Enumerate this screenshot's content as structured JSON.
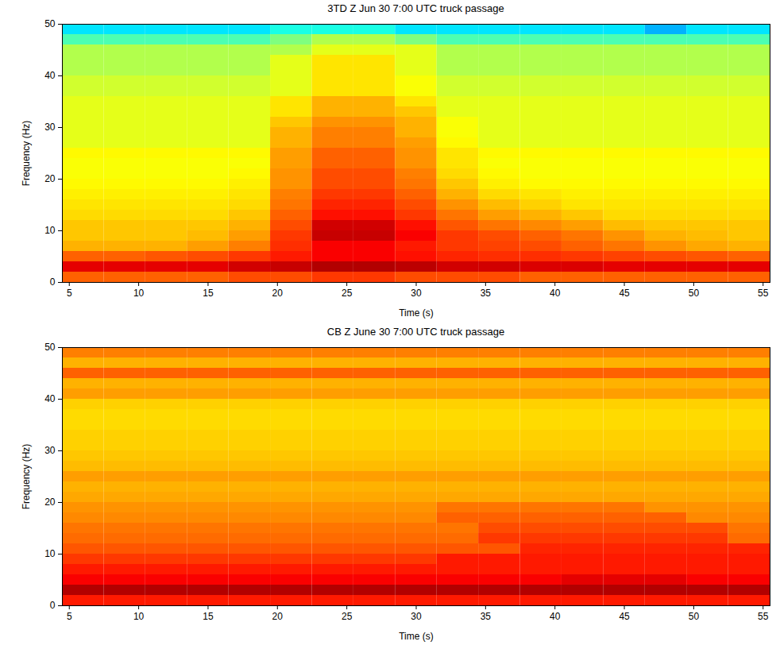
{
  "chart_data": [
    {
      "type": "heatmap",
      "title": "3TD Z Jun 30 7:00 UTC truck passage",
      "x_label": "Time (s)",
      "y_label": "Frequency (Hz)",
      "xlim": [
        4.5,
        55.5
      ],
      "ylim": [
        0,
        50
      ],
      "xticks": [
        5,
        10,
        15,
        20,
        25,
        30,
        35,
        40,
        45,
        50,
        55
      ],
      "yticks": [
        0,
        10,
        20,
        30,
        40,
        50
      ],
      "zlim": [
        0,
        10
      ],
      "x_edges": [
        4.5,
        7.5,
        10.5,
        13.5,
        16.5,
        19.5,
        22.5,
        25.5,
        28.5,
        31.5,
        34.5,
        37.5,
        40.5,
        43.5,
        46.5,
        49.5,
        52.5,
        55.5
      ],
      "y_edges": [
        0,
        2,
        4,
        6,
        8,
        10,
        12,
        14,
        16,
        18,
        20,
        22,
        24,
        26,
        28,
        30,
        32,
        34,
        36,
        38,
        40,
        42,
        44,
        46,
        48,
        50
      ],
      "cells": [
        [
          7.8,
          7.8,
          7.8,
          7.8,
          8,
          8,
          8.2,
          8.2,
          8,
          8,
          8,
          7.8,
          7.8,
          7.8,
          7.8,
          7.8,
          7.8
        ],
        [
          9,
          9,
          9,
          9,
          9.2,
          9.3,
          9.5,
          9.5,
          9.4,
          9.2,
          9.2,
          9.1,
          9.1,
          9,
          9,
          9,
          9
        ],
        [
          7.8,
          7.8,
          7.9,
          8,
          8.2,
          8.5,
          8.8,
          8.8,
          8.6,
          8.4,
          8.3,
          8.3,
          8.2,
          8.1,
          8,
          7.9,
          7.8
        ],
        [
          7,
          7,
          7,
          7.2,
          7.5,
          8.3,
          8.8,
          8.8,
          8.5,
          8.2,
          8.1,
          8,
          7.8,
          7.6,
          7.3,
          7.1,
          7
        ],
        [
          6.8,
          6.8,
          6.8,
          6.9,
          7.2,
          8.2,
          9.3,
          9.3,
          8.8,
          8.2,
          8,
          7.8,
          7.6,
          7.3,
          7,
          6.9,
          6.8
        ],
        [
          6.8,
          6.8,
          6.8,
          6.8,
          7,
          8,
          9.2,
          9.2,
          8.6,
          7.9,
          7.6,
          7.4,
          7.2,
          6.9,
          6.8,
          6.8,
          6.8
        ],
        [
          6.6,
          6.6,
          6.6,
          6.6,
          6.8,
          7.8,
          8.6,
          8.6,
          8.2,
          7.6,
          7.2,
          7,
          6.8,
          6.6,
          6.6,
          6.6,
          6.6
        ],
        [
          6.5,
          6.5,
          6.5,
          6.5,
          6.6,
          7.6,
          8.4,
          8.4,
          8,
          7.3,
          6.9,
          6.7,
          6.5,
          6.5,
          6.5,
          6.5,
          6.5
        ],
        [
          6.4,
          6.4,
          6.4,
          6.4,
          6.5,
          7.5,
          8.2,
          8.2,
          7.8,
          7,
          6.6,
          6.5,
          6.4,
          6.4,
          6.4,
          6.4,
          6.4
        ],
        [
          6.3,
          6.3,
          6.3,
          6.3,
          6.4,
          7.3,
          8,
          8,
          7.6,
          6.8,
          6.4,
          6.3,
          6.3,
          6.3,
          6.3,
          6.3,
          6.3
        ],
        [
          6.2,
          6.2,
          6.2,
          6.2,
          6.3,
          7.3,
          8,
          8,
          7.5,
          6.6,
          6.3,
          6.2,
          6.2,
          6.2,
          6.2,
          6.2,
          6.2
        ],
        [
          6.2,
          6.2,
          6.2,
          6.2,
          6.2,
          7.2,
          7.8,
          7.8,
          7.3,
          6.5,
          6.2,
          6.2,
          6.2,
          6.2,
          6.2,
          6.2,
          6.2
        ],
        [
          6.3,
          6.3,
          6.3,
          6.3,
          6.3,
          7.2,
          7.8,
          7.8,
          7.3,
          6.5,
          6.3,
          6.3,
          6.3,
          6.3,
          6.3,
          6.3,
          6.3
        ],
        [
          6,
          6,
          6,
          6,
          6,
          7,
          7.5,
          7.5,
          7.2,
          6.3,
          6,
          6,
          6,
          6,
          6,
          6,
          6
        ],
        [
          6,
          6,
          6,
          6,
          6,
          7,
          7.5,
          7.5,
          7,
          6.2,
          6,
          6,
          6,
          6,
          6,
          6,
          6
        ],
        [
          6,
          6,
          6,
          6,
          6,
          6.8,
          7.3,
          7.3,
          7,
          6.2,
          6,
          6,
          6,
          6,
          6,
          6,
          6
        ],
        [
          6,
          6,
          6,
          6,
          6,
          6.5,
          7,
          7,
          6.8,
          6,
          6,
          6,
          6,
          6,
          6,
          6,
          6
        ],
        [
          6,
          6,
          6,
          6,
          6,
          6.5,
          7,
          7,
          6.5,
          6,
          6,
          6,
          6,
          6,
          6,
          6,
          6
        ],
        [
          5.8,
          5.8,
          5.8,
          5.8,
          5.8,
          6,
          6.5,
          6.5,
          6.2,
          5.8,
          5.8,
          5.8,
          5.8,
          5.8,
          5.8,
          5.8,
          5.8
        ],
        [
          5.8,
          5.8,
          5.8,
          5.8,
          5.8,
          6,
          6.5,
          6.5,
          6.2,
          5.8,
          5.8,
          5.8,
          5.8,
          5.8,
          5.8,
          5.8,
          5.8
        ],
        [
          5.5,
          5.5,
          5.5,
          5.5,
          5.5,
          6,
          6.5,
          6.5,
          6,
          5.5,
          5.5,
          5.5,
          5.5,
          5.5,
          5.5,
          5.5,
          5.5
        ],
        [
          5.5,
          5.5,
          5.5,
          5.5,
          5.5,
          6,
          6.5,
          6.5,
          6,
          5.5,
          5.5,
          5.5,
          5.5,
          5.5,
          5.5,
          5.5,
          5.5
        ],
        [
          5.5,
          5.5,
          5.5,
          5.5,
          5.5,
          5.5,
          6,
          6,
          6,
          5.5,
          5.5,
          5.5,
          5.5,
          5.5,
          5.5,
          5.5,
          5.5
        ],
        [
          4.5,
          4.5,
          4.5,
          4.5,
          4.5,
          5,
          5.5,
          5.5,
          5,
          4.5,
          4.5,
          4.5,
          4.5,
          4.5,
          4.5,
          4.5,
          4.5
        ],
        [
          3.5,
          3.5,
          3.5,
          3.5,
          3.5,
          4,
          4,
          4,
          3.5,
          3.5,
          3.5,
          3.5,
          3.5,
          3.5,
          3,
          3.5,
          3.5
        ]
      ]
    },
    {
      "type": "heatmap",
      "title": "CB Z June 30 7:00 UTC truck passage",
      "x_label": "Time (s)",
      "y_label": "Frequency (Hz)",
      "xlim": [
        4.5,
        55.5
      ],
      "ylim": [
        0,
        50
      ],
      "xticks": [
        5,
        10,
        15,
        20,
        25,
        30,
        35,
        40,
        45,
        50,
        55
      ],
      "yticks": [
        0,
        10,
        20,
        30,
        40,
        50
      ],
      "zlim": [
        0,
        10
      ],
      "x_edges": [
        4.5,
        7.5,
        10.5,
        13.5,
        16.5,
        19.5,
        22.5,
        25.5,
        28.5,
        31.5,
        34.5,
        37.5,
        40.5,
        43.5,
        46.5,
        49.5,
        52.5,
        55.5
      ],
      "y_edges": [
        0,
        2,
        4,
        6,
        8,
        10,
        12,
        14,
        16,
        18,
        20,
        22,
        24,
        26,
        28,
        30,
        32,
        34,
        36,
        38,
        40,
        42,
        44,
        46,
        48,
        50
      ],
      "cells": [
        [
          8.5,
          8.5,
          8.5,
          8.5,
          8.5,
          8.5,
          8.5,
          8.5,
          8.5,
          8.5,
          8.5,
          8.5,
          8.5,
          8.5,
          8.5,
          8.5,
          8.5
        ],
        [
          9.5,
          9.5,
          9.5,
          9.5,
          9.5,
          9.5,
          9.5,
          9.5,
          9.5,
          9.5,
          9.5,
          9.5,
          9.5,
          9.5,
          9.5,
          9.5,
          9.5
        ],
        [
          8.8,
          8.8,
          8.8,
          8.8,
          8.8,
          8.8,
          8.8,
          8.8,
          8.8,
          8.8,
          8.8,
          8.8,
          9,
          9,
          9,
          8.8,
          8.8
        ],
        [
          8.5,
          8.5,
          8.5,
          8.5,
          8.5,
          8.5,
          8.5,
          8.5,
          8.5,
          8.5,
          8.5,
          8.5,
          8.5,
          8.5,
          8.5,
          8.5,
          8.5
        ],
        [
          8.2,
          8.2,
          8.2,
          8.2,
          8.2,
          8.2,
          8.2,
          8.2,
          8.2,
          8.5,
          8.5,
          8.5,
          8.5,
          8.5,
          8.5,
          8.5,
          8.5
        ],
        [
          7.9,
          7.9,
          7.9,
          7.9,
          7.9,
          7.9,
          7.9,
          7.9,
          7.9,
          7.9,
          7.9,
          8.4,
          8.4,
          8.4,
          8.4,
          8.4,
          8.4
        ],
        [
          7.7,
          7.7,
          7.7,
          7.7,
          7.7,
          7.7,
          7.7,
          7.7,
          7.7,
          7.7,
          8.2,
          8.2,
          8.2,
          8.2,
          8.2,
          8.2,
          7.7
        ],
        [
          7.6,
          7.6,
          7.6,
          7.6,
          7.6,
          7.6,
          7.6,
          7.6,
          7.6,
          7.6,
          8,
          8,
          8,
          8,
          8,
          8,
          7.6
        ],
        [
          7.4,
          7.4,
          7.4,
          7.4,
          7.4,
          7.4,
          7.4,
          7.4,
          7.4,
          7.8,
          7.8,
          7.8,
          7.8,
          7.8,
          7.8,
          7.4,
          7.4
        ],
        [
          7.3,
          7.3,
          7.3,
          7.3,
          7.3,
          7.3,
          7.3,
          7.3,
          7.3,
          7.6,
          7.6,
          7.6,
          7.6,
          7.6,
          7.3,
          7.3,
          7.3
        ],
        [
          7.1,
          7.1,
          7.1,
          7.1,
          7.1,
          7.1,
          7.1,
          7.1,
          7.1,
          7.1,
          7.1,
          7.1,
          7.1,
          7.1,
          7.1,
          7.1,
          7.1
        ],
        [
          7,
          7,
          7,
          7,
          7,
          7,
          7,
          7,
          7,
          7,
          7,
          7,
          7,
          7,
          7,
          7,
          7
        ],
        [
          7.2,
          7.2,
          7.2,
          7.2,
          7.2,
          7.2,
          7.2,
          7.2,
          7.2,
          7.2,
          7.2,
          7.2,
          7.2,
          7.2,
          7.2,
          7.2,
          7.2
        ],
        [
          6.9,
          6.9,
          6.9,
          6.9,
          6.9,
          6.9,
          6.9,
          6.9,
          6.9,
          6.9,
          6.9,
          6.9,
          6.9,
          6.9,
          6.9,
          6.9,
          6.9
        ],
        [
          6.8,
          6.8,
          6.8,
          6.8,
          6.8,
          6.8,
          6.8,
          6.8,
          6.8,
          6.8,
          6.8,
          6.8,
          6.8,
          6.8,
          6.8,
          6.8,
          6.8
        ],
        [
          6.7,
          6.7,
          6.7,
          6.7,
          6.7,
          6.7,
          6.7,
          6.7,
          6.7,
          6.7,
          6.7,
          6.7,
          6.7,
          6.7,
          6.7,
          6.7,
          6.7
        ],
        [
          6.7,
          6.7,
          6.7,
          6.7,
          6.7,
          6.7,
          6.7,
          6.7,
          6.7,
          6.7,
          6.7,
          6.7,
          6.7,
          6.7,
          6.7,
          6.7,
          6.7
        ],
        [
          6.6,
          6.6,
          6.6,
          6.6,
          6.6,
          6.6,
          6.6,
          6.6,
          6.6,
          6.6,
          6.6,
          6.6,
          6.6,
          6.6,
          6.6,
          6.6,
          6.6
        ],
        [
          6.6,
          6.6,
          6.6,
          6.6,
          6.6,
          6.6,
          6.6,
          6.6,
          6.6,
          6.6,
          6.6,
          6.6,
          6.6,
          6.6,
          6.6,
          6.6,
          6.6
        ],
        [
          6.7,
          6.7,
          6.7,
          6.7,
          6.7,
          6.7,
          6.7,
          6.7,
          6.7,
          6.7,
          6.7,
          6.7,
          6.7,
          6.7,
          6.7,
          6.7,
          6.7
        ],
        [
          7.2,
          7.2,
          7.2,
          7.2,
          7.2,
          7.2,
          7.2,
          7.2,
          7.2,
          7.2,
          7.2,
          7.2,
          7.2,
          7.2,
          7.2,
          7.2,
          7.2
        ],
        [
          7,
          7,
          7,
          7,
          7,
          7,
          7,
          7,
          7,
          7,
          7,
          7,
          7,
          7,
          7,
          7,
          7
        ],
        [
          7.8,
          7.8,
          7.8,
          7.8,
          7.8,
          7.8,
          7.8,
          7.8,
          7.8,
          7.8,
          7.8,
          7.8,
          7.8,
          7.8,
          7.8,
          7.8,
          7.8
        ],
        [
          7,
          7,
          7,
          7,
          7,
          7,
          7,
          7,
          7,
          7,
          7,
          7,
          7,
          7,
          7,
          7,
          7
        ],
        [
          7.5,
          7.5,
          7.5,
          7.5,
          7.5,
          7.5,
          7.5,
          7.5,
          7.5,
          7.5,
          7.5,
          7.5,
          7.5,
          7.5,
          7.5,
          7.5,
          7.5
        ]
      ]
    }
  ]
}
